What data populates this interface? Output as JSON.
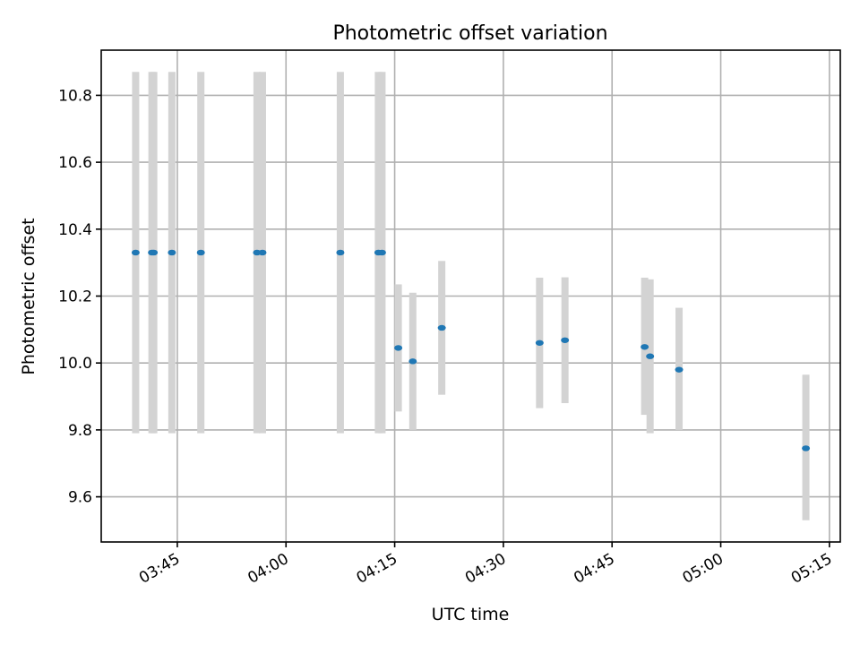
{
  "chart_data": {
    "type": "scatter",
    "title": "Photometric offset variation",
    "xlabel": "UTC time",
    "ylabel": "Photometric offset",
    "x_unit": "UTC time (HH:MM)",
    "xlim": [
      "03:34:30",
      "05:16:30"
    ],
    "ylim": [
      9.465,
      10.935
    ],
    "xticks": [
      "03:45",
      "04:00",
      "04:15",
      "04:30",
      "04:45",
      "05:00",
      "05:15"
    ],
    "yticks": [
      9.6,
      9.8,
      10.0,
      10.2,
      10.4,
      10.6,
      10.8
    ],
    "ytick_labels": [
      "9.6",
      "9.8",
      "10.0",
      "10.2",
      "10.4",
      "10.6",
      "10.8"
    ],
    "grid": true,
    "error_bar_color": "#d3d3d3",
    "point_color": "#1f77b4",
    "points": [
      {
        "x": "03:39:15",
        "y": 10.33,
        "ylow": 9.79,
        "yhigh": 10.87
      },
      {
        "x": "03:41:30",
        "y": 10.33,
        "ylow": 9.79,
        "yhigh": 10.87
      },
      {
        "x": "03:41:45",
        "y": 10.33,
        "ylow": 9.79,
        "yhigh": 10.87
      },
      {
        "x": "03:44:15",
        "y": 10.33,
        "ylow": 9.79,
        "yhigh": 10.87
      },
      {
        "x": "03:48:15",
        "y": 10.33,
        "ylow": 9.79,
        "yhigh": 10.87
      },
      {
        "x": "03:56:00",
        "y": 10.33,
        "ylow": 9.79,
        "yhigh": 10.87
      },
      {
        "x": "03:56:45",
        "y": 10.33,
        "ylow": 9.79,
        "yhigh": 10.87
      },
      {
        "x": "04:07:30",
        "y": 10.33,
        "ylow": 9.79,
        "yhigh": 10.87
      },
      {
        "x": "04:12:45",
        "y": 10.33,
        "ylow": 9.79,
        "yhigh": 10.87
      },
      {
        "x": "04:13:15",
        "y": 10.33,
        "ylow": 9.79,
        "yhigh": 10.87
      },
      {
        "x": "04:15:30",
        "y": 10.045,
        "ylow": 9.855,
        "yhigh": 10.235
      },
      {
        "x": "04:17:30",
        "y": 10.005,
        "ylow": 9.8,
        "yhigh": 10.21
      },
      {
        "x": "04:21:30",
        "y": 10.105,
        "ylow": 9.905,
        "yhigh": 10.305
      },
      {
        "x": "04:35:00",
        "y": 10.06,
        "ylow": 9.865,
        "yhigh": 10.255
      },
      {
        "x": "04:38:30",
        "y": 10.068,
        "ylow": 9.88,
        "yhigh": 10.256
      },
      {
        "x": "04:49:30",
        "y": 10.048,
        "ylow": 9.845,
        "yhigh": 10.255
      },
      {
        "x": "04:50:15",
        "y": 10.02,
        "ylow": 9.79,
        "yhigh": 10.25
      },
      {
        "x": "04:54:15",
        "y": 9.98,
        "ylow": 9.8,
        "yhigh": 10.165
      },
      {
        "x": "05:11:45",
        "y": 9.745,
        "ylow": 9.53,
        "yhigh": 9.965
      }
    ]
  }
}
